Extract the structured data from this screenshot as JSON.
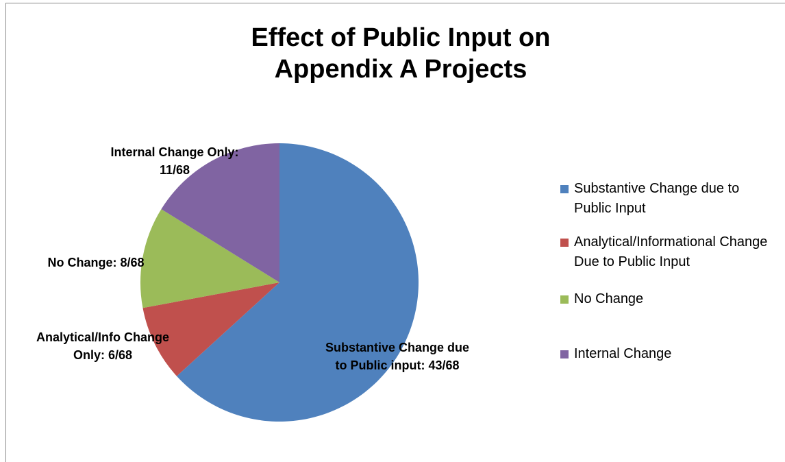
{
  "chart_data": {
    "type": "pie",
    "title": "Effect of Public Input on Appendix A Projects",
    "categories": [
      "Substantive Change due to Public Input",
      "Analytical/Informational Change Due to Public Input",
      "No Change",
      "Internal Change"
    ],
    "values": [
      43,
      6,
      8,
      11
    ],
    "value_labels": [
      "Substantive Change due to Public input: 43/68",
      "Analytical/Info Change Only: 6/68",
      "No Change: 8/68",
      "Internal Change Only: 11/68"
    ],
    "colors": [
      "#4f81bd",
      "#c0504d",
      "#9bbb59",
      "#8064a2"
    ],
    "legend": "right"
  }
}
